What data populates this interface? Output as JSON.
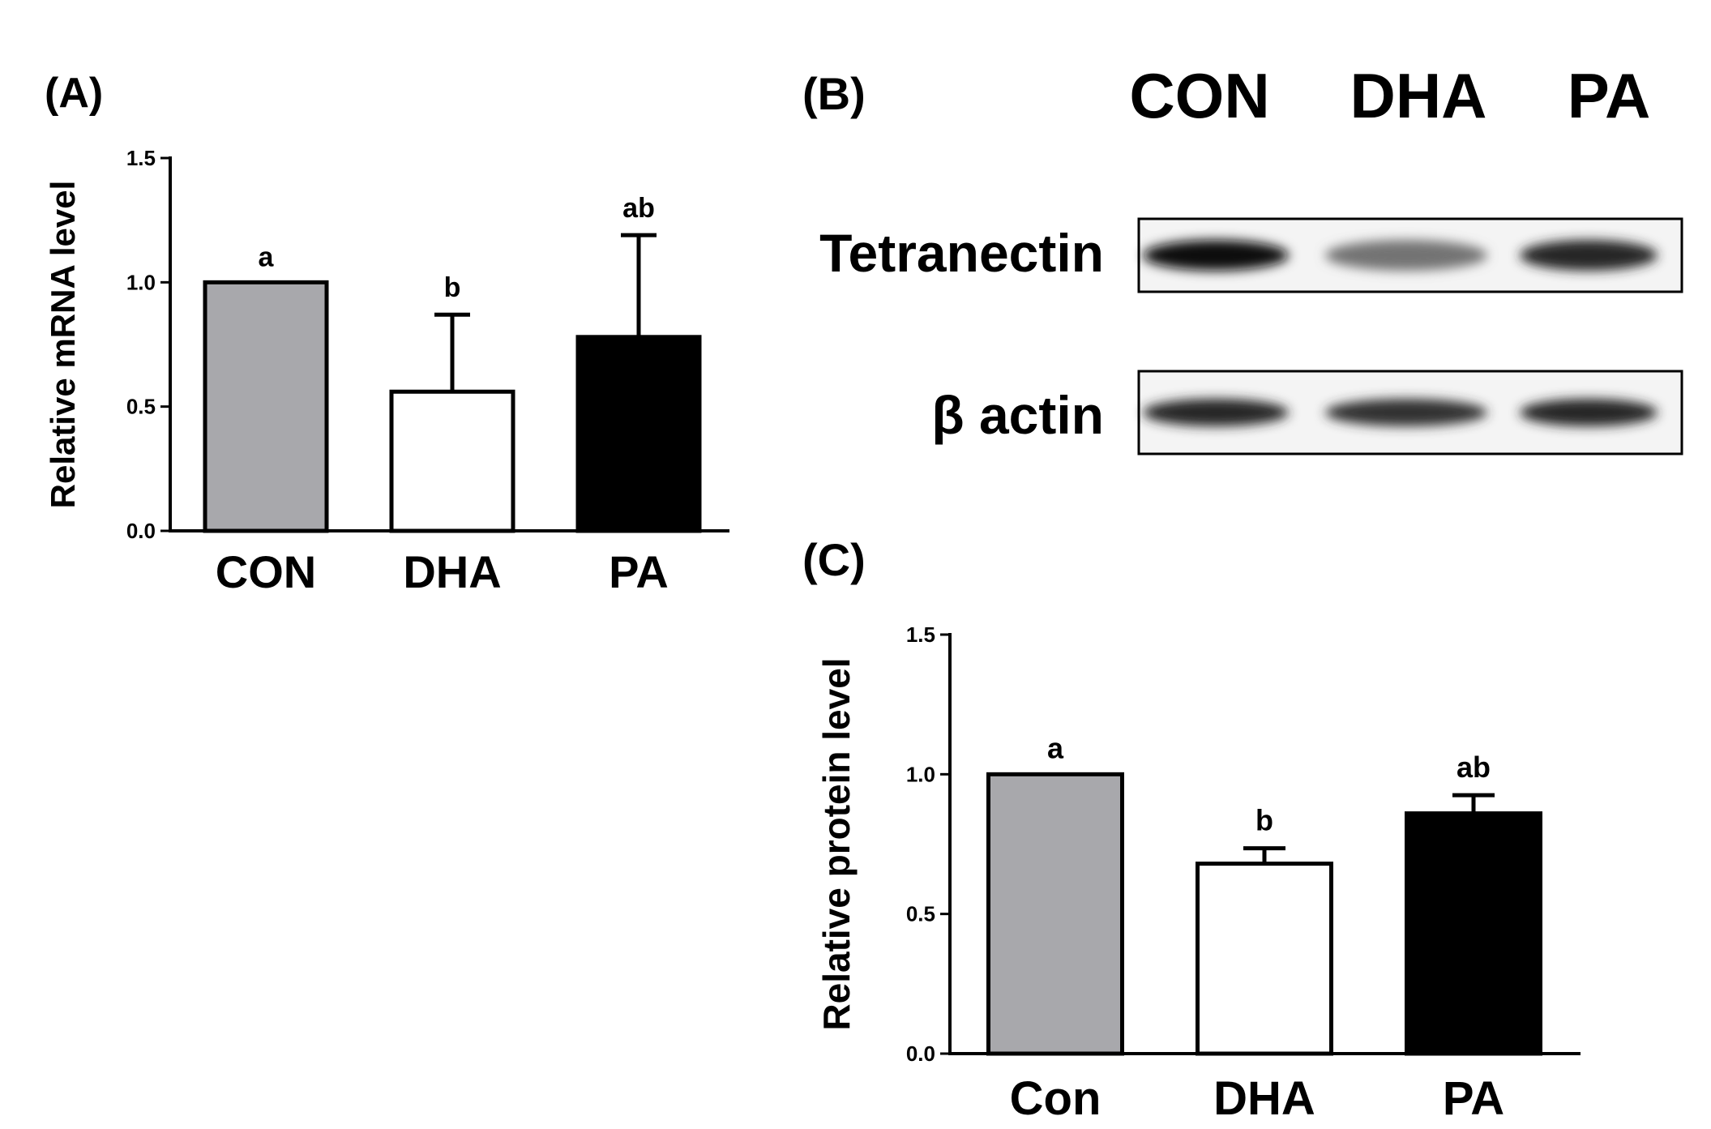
{
  "panels": {
    "a_label": "(A)",
    "b_label": "(B)",
    "c_label": "(C)"
  },
  "blot": {
    "lanes": [
      "CON",
      "DHA",
      "PA"
    ],
    "rows": [
      {
        "label": "Tetranectin",
        "intensities": [
          0.95,
          0.55,
          0.85
        ]
      },
      {
        "label": "β actin",
        "intensities": [
          0.85,
          0.8,
          0.85
        ]
      }
    ]
  },
  "colors": {
    "CON": "#a8a8ac",
    "DHA": "#ffffff",
    "PA": "#000000"
  },
  "chart_data": [
    {
      "type": "bar",
      "panel": "A",
      "ylabel": "Relative mRNA level",
      "xlabel": "",
      "title": "",
      "categories": [
        "CON",
        "DHA",
        "PA"
      ],
      "values": [
        1.0,
        0.56,
        0.78
      ],
      "error_upper": [
        0.0,
        0.31,
        0.41
      ],
      "significance": [
        "a",
        "b",
        "ab"
      ],
      "ylim": [
        0,
        1.5
      ],
      "yticks": [
        0.0,
        0.5,
        1.0,
        1.5
      ],
      "ytick_labels": [
        "0.0",
        "0.5",
        "1.0",
        "1.5"
      ],
      "grid": false
    },
    {
      "type": "bar",
      "panel": "C",
      "ylabel": "Relative protein level",
      "xlabel": "",
      "title": "",
      "categories": [
        "Con",
        "DHA",
        "PA"
      ],
      "values": [
        1.0,
        0.68,
        0.86
      ],
      "error_upper": [
        0.0,
        0.055,
        0.065
      ],
      "significance": [
        "a",
        "b",
        "ab"
      ],
      "ylim": [
        0,
        1.5
      ],
      "yticks": [
        0.0,
        0.5,
        1.0,
        1.5
      ],
      "ytick_labels": [
        "0.0",
        "0.5",
        "1.0",
        "1.5"
      ],
      "grid": false
    }
  ]
}
